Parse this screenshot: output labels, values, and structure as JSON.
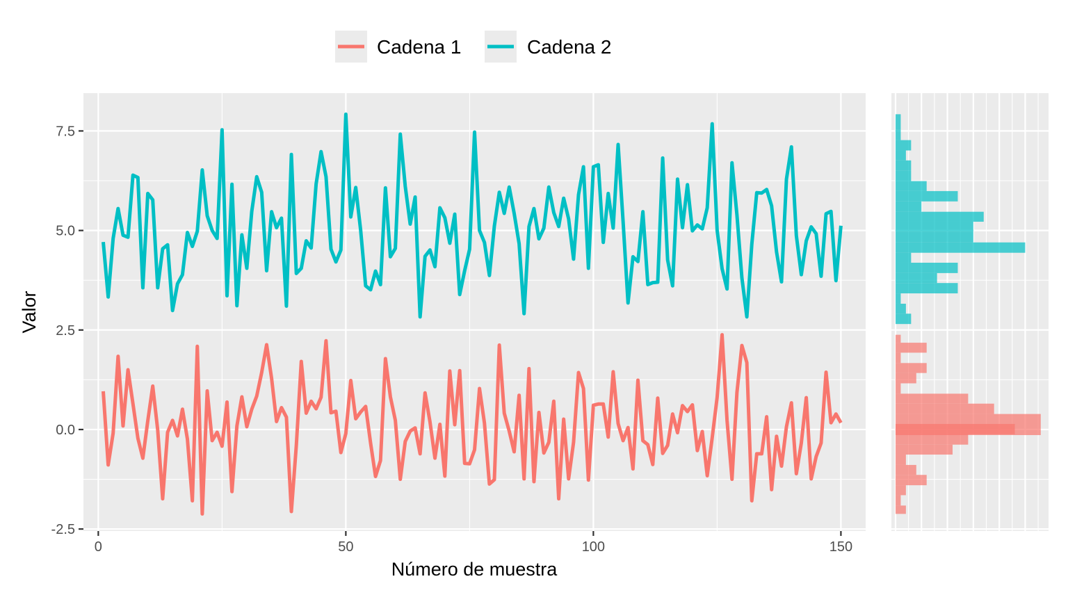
{
  "chart_data": {
    "type": "line",
    "title": "",
    "xlabel": "Número de muestra",
    "ylabel": "Valor",
    "xlim": [
      -3,
      155
    ],
    "ylim": [
      -2.55,
      8.45
    ],
    "x_ticks": [
      0,
      50,
      100,
      150
    ],
    "x_tick_labels": [
      "0",
      "50",
      "100",
      "150"
    ],
    "y_ticks": [
      -2.5,
      0.0,
      2.5,
      5.0,
      7.5
    ],
    "y_tick_labels": [
      "-2.5",
      "0.0",
      "2.5",
      "5.0",
      "7.5"
    ],
    "grid": true,
    "legend_position": "top",
    "series": [
      {
        "name": "Cadena 1",
        "color": "#F8766D",
        "x_start": 1,
        "values": [
          0.96,
          -0.89,
          -0.09,
          1.84,
          0.09,
          1.5,
          0.65,
          -0.22,
          -0.72,
          0.22,
          1.09,
          -0.01,
          -1.74,
          -0.07,
          0.23,
          -0.16,
          0.51,
          -0.24,
          -1.79,
          2.09,
          -2.12,
          0.97,
          -0.28,
          -0.07,
          -0.42,
          0.69,
          -1.56,
          0.09,
          0.82,
          0.07,
          0.51,
          0.84,
          1.43,
          2.13,
          1.29,
          0.2,
          0.55,
          0.31,
          -2.06,
          -0.4,
          1.71,
          0.41,
          0.71,
          0.52,
          0.81,
          2.23,
          0.42,
          0.46,
          -0.58,
          -0.1,
          1.23,
          0.27,
          0.44,
          0.58,
          -0.34,
          -1.18,
          -0.78,
          1.78,
          0.82,
          0.23,
          -1.25,
          -0.3,
          -0.04,
          0.04,
          -0.61,
          0.92,
          0.19,
          -0.72,
          0.13,
          -1.17,
          1.47,
          0.12,
          1.48,
          -0.85,
          -0.86,
          -0.51,
          1.03,
          0.16,
          -1.37,
          -1.26,
          2.12,
          0.41,
          -0.04,
          -0.56,
          0.86,
          -1.24,
          1.53,
          -1.31,
          0.43,
          -0.59,
          -0.32,
          0.71,
          -1.74,
          0.26,
          -1.24,
          -0.32,
          1.43,
          1.03,
          -1.27,
          0.61,
          0.64,
          0.64,
          -0.19,
          1.45,
          0.15,
          -0.28,
          0.05,
          -0.99,
          1.24,
          -0.28,
          -0.38,
          -0.88,
          0.79,
          -0.6,
          -0.4,
          0.39,
          -0.08,
          0.6,
          0.45,
          0.62,
          -0.53,
          -0.05,
          -1.16,
          -0.21,
          0.81,
          2.38,
          0.23,
          -1.25,
          0.93,
          2.11,
          1.68,
          -1.79,
          -0.61,
          -0.61,
          0.32,
          -1.51,
          -0.17,
          -0.92,
          0.07,
          0.67,
          -1.11,
          -0.34,
          0.8,
          -1.24,
          -0.68,
          -0.34,
          1.44,
          0.17,
          0.39,
          0.17
        ]
      },
      {
        "name": "Cadena 2",
        "color": "#00BFC4",
        "x_start": 1,
        "values": [
          4.71,
          3.33,
          4.8,
          5.55,
          4.88,
          4.83,
          6.39,
          6.33,
          3.56,
          5.93,
          5.77,
          3.56,
          4.54,
          4.64,
          2.99,
          3.66,
          3.89,
          4.95,
          4.6,
          4.98,
          6.52,
          5.37,
          5.0,
          4.8,
          7.53,
          3.36,
          6.16,
          3.11,
          4.89,
          4.05,
          5.48,
          6.35,
          5.96,
          3.99,
          5.47,
          5.07,
          5.31,
          3.1,
          6.91,
          3.92,
          4.05,
          4.74,
          4.56,
          6.17,
          6.98,
          6.35,
          4.53,
          4.21,
          4.51,
          7.92,
          5.34,
          6.08,
          5.0,
          3.61,
          3.51,
          3.98,
          3.64,
          6.07,
          4.34,
          4.55,
          7.42,
          6.11,
          5.16,
          5.84,
          2.83,
          4.35,
          4.51,
          4.09,
          5.57,
          5.32,
          4.68,
          5.41,
          3.39,
          3.99,
          4.53,
          7.47,
          5.0,
          4.7,
          3.87,
          5.11,
          5.96,
          5.43,
          6.09,
          5.43,
          4.67,
          2.91,
          5.1,
          5.55,
          4.79,
          5.06,
          6.09,
          5.45,
          5.1,
          5.81,
          5.29,
          4.28,
          5.9,
          6.6,
          4.05,
          6.6,
          6.65,
          4.7,
          5.93,
          5.06,
          7.16,
          5.23,
          3.18,
          4.34,
          4.22,
          5.47,
          3.64,
          3.69,
          3.7,
          6.82,
          4.26,
          3.61,
          6.29,
          5.07,
          6.15,
          4.99,
          5.14,
          5.04,
          5.57,
          7.68,
          5.0,
          4.04,
          3.53,
          6.7,
          5.39,
          3.81,
          2.83,
          4.65,
          5.95,
          5.94,
          6.03,
          5.62,
          4.46,
          3.71,
          6.29,
          7.1,
          4.87,
          3.89,
          4.74,
          5.09,
          4.92,
          3.85,
          5.42,
          5.48,
          3.74,
          5.12
        ]
      }
    ],
    "histogram": {
      "type": "bar",
      "orientation": "horizontal",
      "shares_axis_with": "ylim",
      "series": [
        {
          "name": "Cadena 1",
          "color": "#F8766D",
          "bins": [
            [
              -2.12,
              -1.91,
              2
            ],
            [
              -1.91,
              -1.65,
              1
            ],
            [
              -1.65,
              -1.4,
              2
            ],
            [
              -1.4,
              -1.14,
              6
            ],
            [
              -1.14,
              -0.89,
              4
            ],
            [
              -0.89,
              -0.63,
              2
            ],
            [
              -0.63,
              -0.38,
              11
            ],
            [
              -0.38,
              -0.12,
              14
            ],
            [
              -0.12,
              0.14,
              23
            ],
            [
              -0.14,
              0.39,
              28
            ],
            [
              0.39,
              0.65,
              19
            ],
            [
              0.65,
              0.9,
              14
            ],
            [
              0.9,
              1.16,
              1
            ],
            [
              1.16,
              1.42,
              4
            ],
            [
              1.42,
              1.67,
              6
            ],
            [
              1.67,
              1.93,
              1
            ],
            [
              1.93,
              2.18,
              6
            ],
            [
              2.18,
              2.38,
              1
            ]
          ]
        },
        {
          "name": "Cadena 2",
          "color": "#00BFC4",
          "bins": [
            [
              2.65,
              2.91,
              3
            ],
            [
              2.91,
              3.16,
              2
            ],
            [
              3.16,
              3.42,
              1
            ],
            [
              3.42,
              3.68,
              12
            ],
            [
              3.68,
              3.93,
              8
            ],
            [
              3.93,
              4.19,
              12
            ],
            [
              4.19,
              4.44,
              3
            ],
            [
              4.44,
              4.7,
              25
            ],
            [
              4.7,
              4.96,
              15
            ],
            [
              4.96,
              5.22,
              15
            ],
            [
              5.22,
              5.47,
              17
            ],
            [
              5.47,
              5.73,
              5
            ],
            [
              5.73,
              5.99,
              12
            ],
            [
              5.99,
              6.24,
              6
            ],
            [
              6.24,
              6.5,
              3
            ],
            [
              6.5,
              6.76,
              3
            ],
            [
              6.76,
              7.01,
              2
            ],
            [
              7.01,
              7.27,
              3
            ],
            [
              7.27,
              7.53,
              1
            ],
            [
              7.53,
              7.92,
              1
            ]
          ]
        }
      ],
      "xlim": [
        -0.8,
        29.5
      ]
    }
  }
}
